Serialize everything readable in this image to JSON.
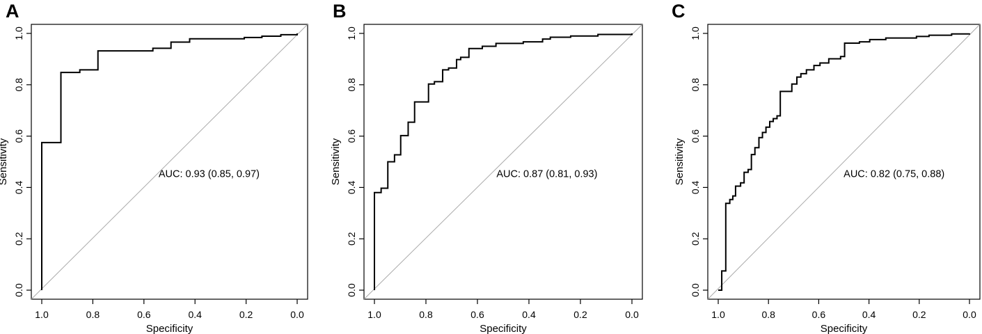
{
  "figure": {
    "background_color": "#ffffff",
    "curve_color": "#000000",
    "reference_line_color": "#aaaaaa",
    "panel_letters": [
      "A",
      "B",
      "C"
    ]
  },
  "chart_data": [
    {
      "type": "line",
      "panel_label": "A",
      "title": "",
      "xlabel": "Specificity",
      "ylabel": "Sensitivity",
      "x_ticks": [
        1.0,
        0.8,
        0.6,
        0.4,
        0.2,
        0.0
      ],
      "y_ticks": [
        0.0,
        0.2,
        0.4,
        0.6,
        0.8,
        1.0
      ],
      "xlim": [
        1.0,
        0.0
      ],
      "ylim": [
        0.0,
        1.0
      ],
      "grid": false,
      "diagonal_reference_line": true,
      "auc": 0.93,
      "auc_ci": [
        0.85,
        0.97
      ],
      "annotation": {
        "text": "AUC: 0.93 (0.85, 0.97)",
        "x": 0.345,
        "y": 0.44
      },
      "series": [
        {
          "name": "ROC curve",
          "step_points": [
            [
              1.0,
              0.0
            ],
            [
              1.0,
              0.575
            ],
            [
              0.925,
              0.575
            ],
            [
              0.925,
              0.848
            ],
            [
              0.851,
              0.848
            ],
            [
              0.851,
              0.858
            ],
            [
              0.78,
              0.858
            ],
            [
              0.78,
              0.932
            ],
            [
              0.565,
              0.932
            ],
            [
              0.565,
              0.942
            ],
            [
              0.494,
              0.942
            ],
            [
              0.494,
              0.966
            ],
            [
              0.421,
              0.966
            ],
            [
              0.421,
              0.979
            ],
            [
              0.207,
              0.979
            ],
            [
              0.207,
              0.984
            ],
            [
              0.138,
              0.984
            ],
            [
              0.138,
              0.989
            ],
            [
              0.064,
              0.989
            ],
            [
              0.064,
              0.995
            ],
            [
              0.0,
              0.995
            ],
            [
              0.0,
              1.0
            ]
          ]
        }
      ]
    },
    {
      "type": "line",
      "panel_label": "B",
      "title": "",
      "xlabel": "Specificity",
      "ylabel": "Sensitivity",
      "x_ticks": [
        1.0,
        0.8,
        0.6,
        0.4,
        0.2,
        0.0
      ],
      "y_ticks": [
        0.0,
        0.2,
        0.4,
        0.6,
        0.8,
        1.0
      ],
      "xlim": [
        1.0,
        0.0
      ],
      "ylim": [
        0.0,
        1.0
      ],
      "grid": false,
      "diagonal_reference_line": true,
      "auc": 0.87,
      "auc_ci": [
        0.81,
        0.93
      ],
      "annotation": {
        "text": "AUC: 0.87 (0.81, 0.93)",
        "x": 0.33,
        "y": 0.44
      },
      "series": [
        {
          "name": "ROC curve",
          "step_points": [
            [
              1.0,
              0.0
            ],
            [
              1.0,
              0.38
            ],
            [
              0.974,
              0.38
            ],
            [
              0.974,
              0.397
            ],
            [
              0.948,
              0.397
            ],
            [
              0.948,
              0.5
            ],
            [
              0.922,
              0.5
            ],
            [
              0.922,
              0.527
            ],
            [
              0.898,
              0.527
            ],
            [
              0.898,
              0.602
            ],
            [
              0.869,
              0.602
            ],
            [
              0.869,
              0.654
            ],
            [
              0.844,
              0.654
            ],
            [
              0.844,
              0.733
            ],
            [
              0.79,
              0.733
            ],
            [
              0.79,
              0.803
            ],
            [
              0.767,
              0.803
            ],
            [
              0.767,
              0.812
            ],
            [
              0.735,
              0.812
            ],
            [
              0.735,
              0.858
            ],
            [
              0.712,
              0.858
            ],
            [
              0.712,
              0.865
            ],
            [
              0.681,
              0.865
            ],
            [
              0.681,
              0.898
            ],
            [
              0.665,
              0.898
            ],
            [
              0.665,
              0.907
            ],
            [
              0.633,
              0.907
            ],
            [
              0.633,
              0.941
            ],
            [
              0.581,
              0.941
            ],
            [
              0.581,
              0.95
            ],
            [
              0.528,
              0.95
            ],
            [
              0.528,
              0.961
            ],
            [
              0.422,
              0.961
            ],
            [
              0.422,
              0.967
            ],
            [
              0.347,
              0.967
            ],
            [
              0.347,
              0.978
            ],
            [
              0.317,
              0.978
            ],
            [
              0.317,
              0.985
            ],
            [
              0.238,
              0.985
            ],
            [
              0.238,
              0.99
            ],
            [
              0.132,
              0.99
            ],
            [
              0.132,
              0.996
            ],
            [
              0.0,
              0.996
            ],
            [
              0.0,
              1.0
            ]
          ]
        }
      ]
    },
    {
      "type": "line",
      "panel_label": "C",
      "title": "",
      "xlabel": "Specificity",
      "ylabel": "Sensitivity",
      "x_ticks": [
        1.0,
        0.8,
        0.6,
        0.4,
        0.2,
        0.0
      ],
      "y_ticks": [
        0.0,
        0.2,
        0.4,
        0.6,
        0.8,
        1.0
      ],
      "xlim": [
        1.0,
        0.0
      ],
      "ylim": [
        0.0,
        1.0
      ],
      "grid": false,
      "diagonal_reference_line": true,
      "auc": 0.82,
      "auc_ci": [
        0.75,
        0.88
      ],
      "annotation": {
        "text": "AUC: 0.82 (0.75, 0.88)",
        "x": 0.3,
        "y": 0.44
      },
      "series": [
        {
          "name": "ROC curve",
          "step_points": [
            [
              1.0,
              0.0
            ],
            [
              0.986,
              0.0
            ],
            [
              0.986,
              0.075
            ],
            [
              0.97,
              0.075
            ],
            [
              0.97,
              0.338
            ],
            [
              0.954,
              0.338
            ],
            [
              0.954,
              0.353
            ],
            [
              0.942,
              0.353
            ],
            [
              0.942,
              0.367
            ],
            [
              0.931,
              0.367
            ],
            [
              0.931,
              0.405
            ],
            [
              0.911,
              0.405
            ],
            [
              0.911,
              0.418
            ],
            [
              0.897,
              0.418
            ],
            [
              0.897,
              0.459
            ],
            [
              0.881,
              0.459
            ],
            [
              0.881,
              0.47
            ],
            [
              0.868,
              0.47
            ],
            [
              0.868,
              0.528
            ],
            [
              0.854,
              0.528
            ],
            [
              0.854,
              0.555
            ],
            [
              0.838,
              0.555
            ],
            [
              0.838,
              0.594
            ],
            [
              0.824,
              0.594
            ],
            [
              0.824,
              0.614
            ],
            [
              0.81,
              0.614
            ],
            [
              0.81,
              0.635
            ],
            [
              0.795,
              0.635
            ],
            [
              0.795,
              0.657
            ],
            [
              0.781,
              0.657
            ],
            [
              0.781,
              0.668
            ],
            [
              0.766,
              0.668
            ],
            [
              0.766,
              0.679
            ],
            [
              0.753,
              0.679
            ],
            [
              0.753,
              0.774
            ],
            [
              0.707,
              0.774
            ],
            [
              0.707,
              0.803
            ],
            [
              0.687,
              0.803
            ],
            [
              0.687,
              0.83
            ],
            [
              0.671,
              0.83
            ],
            [
              0.671,
              0.843
            ],
            [
              0.649,
              0.843
            ],
            [
              0.649,
              0.858
            ],
            [
              0.619,
              0.858
            ],
            [
              0.619,
              0.875
            ],
            [
              0.595,
              0.875
            ],
            [
              0.595,
              0.885
            ],
            [
              0.56,
              0.885
            ],
            [
              0.56,
              0.901
            ],
            [
              0.513,
              0.901
            ],
            [
              0.513,
              0.91
            ],
            [
              0.497,
              0.91
            ],
            [
              0.497,
              0.962
            ],
            [
              0.438,
              0.962
            ],
            [
              0.438,
              0.967
            ],
            [
              0.397,
              0.967
            ],
            [
              0.397,
              0.976
            ],
            [
              0.333,
              0.976
            ],
            [
              0.333,
              0.982
            ],
            [
              0.211,
              0.982
            ],
            [
              0.211,
              0.988
            ],
            [
              0.161,
              0.988
            ],
            [
              0.161,
              0.993
            ],
            [
              0.071,
              0.993
            ],
            [
              0.071,
              0.998
            ],
            [
              0.0,
              0.998
            ],
            [
              0.0,
              1.0
            ]
          ]
        }
      ]
    }
  ]
}
